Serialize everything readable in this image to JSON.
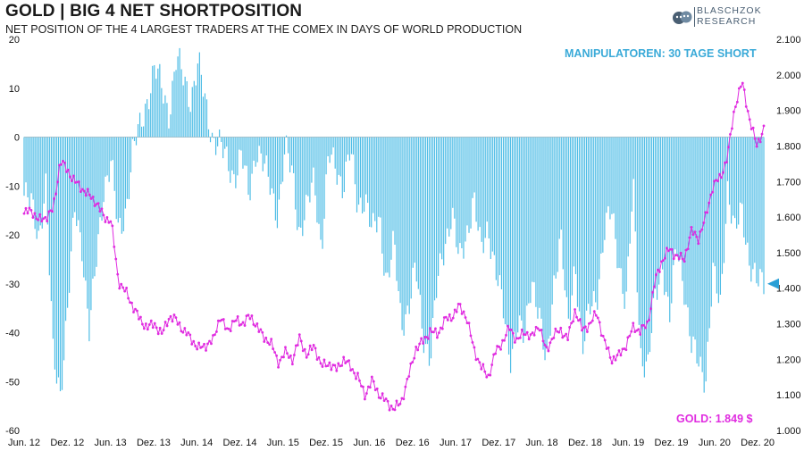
{
  "title": "GOLD | BIG 4 NET SHORTPOSITION",
  "subtitle": "NET POSITION OF THE 4 LARGEST TRADERS AT THE COMEX IN DAYS OF WORLD PRODUCTION",
  "logo": {
    "line1": "BLASCHZOK",
    "line2": "RESEARCH"
  },
  "colors": {
    "bars": "#4fbde6",
    "gold": "#e02ce0",
    "marker": "#2a9fd6"
  },
  "chart_data": {
    "type": "bar+line",
    "title": "GOLD | BIG 4 NET SHORTPOSITION",
    "annotations": {
      "manipulators": "MANIPULATOREN: 30 TAGE SHORT",
      "gold": "GOLD: 1.849 $"
    },
    "x_labels": [
      "Jun. 12",
      "Dez. 12",
      "Jun. 13",
      "Dez. 13",
      "Jun. 14",
      "Dez. 14",
      "Jun. 15",
      "Dez. 15",
      "Jun. 16",
      "Dez. 16",
      "Jun. 17",
      "Dez. 17",
      "Jun. 18",
      "Dez. 18",
      "Jun. 19",
      "Dez. 19",
      "Jun. 20",
      "Dez. 20"
    ],
    "y_left": {
      "min": -60,
      "max": 20,
      "ticks": [
        "20",
        "10",
        "0",
        "-10",
        "-20",
        "-30",
        "-40",
        "-50",
        "-60"
      ]
    },
    "y_right": {
      "min": 1000,
      "max": 2100,
      "ticks": [
        "2.100",
        "2.000",
        "1.900",
        "1.800",
        "1.700",
        "1.600",
        "1.500",
        "1.400",
        "1.300",
        "1.200",
        "1.100",
        "1.000"
      ]
    },
    "current_position": -30,
    "current_gold": 1849,
    "series": [
      {
        "name": "Big 4 net position (days of world production)",
        "axis": "left",
        "style": "bars",
        "t": [
          0,
          1,
          2,
          3,
          4,
          5,
          6,
          7,
          8,
          9,
          10,
          11,
          12,
          13,
          14,
          15,
          16,
          17,
          18,
          19,
          20,
          21,
          22,
          23,
          24,
          25,
          26,
          27,
          28,
          29,
          30,
          31,
          32,
          33,
          34,
          35,
          36,
          37,
          38,
          39,
          40,
          41,
          42,
          43,
          44,
          45,
          46,
          47,
          48,
          49,
          50,
          51,
          52,
          53,
          54,
          55,
          56,
          57,
          58,
          59,
          60,
          61,
          62,
          63,
          64,
          65,
          66,
          67,
          68,
          69,
          70,
          71,
          72,
          73,
          74,
          75,
          76,
          77,
          78,
          79,
          80,
          81,
          82,
          83,
          84,
          85,
          86,
          87,
          88,
          89,
          90,
          91,
          92,
          93,
          94,
          95,
          96,
          97,
          98,
          99,
          100,
          101,
          102
        ],
        "values": [
          -12,
          -14,
          -20,
          -10,
          -45,
          -52,
          -35,
          -15,
          -22,
          -40,
          -25,
          -10,
          -5,
          -20,
          -15,
          -3,
          2,
          8,
          14,
          10,
          5,
          16,
          12,
          8,
          15,
          7,
          0,
          -2,
          -5,
          -8,
          -4,
          -12,
          -2,
          -6,
          -10,
          -16,
          -3,
          -7,
          -20,
          -15,
          -8,
          -23,
          -4,
          -6,
          -10,
          -3,
          -14,
          -12,
          -20,
          -16,
          -30,
          -22,
          -38,
          -35,
          -27,
          -40,
          -45,
          -30,
          -22,
          -15,
          -26,
          -20,
          -12,
          -24,
          -18,
          -27,
          -35,
          -45,
          -38,
          -42,
          -28,
          -36,
          -48,
          -30,
          -20,
          -40,
          -25,
          -44,
          -35,
          -32,
          -20,
          -15,
          -25,
          -35,
          -10,
          -44,
          -48,
          -33,
          -25,
          -38,
          -22,
          -30,
          -43,
          -46,
          -49,
          -28,
          -35,
          -10,
          -20,
          -15,
          -25,
          -30,
          -30
        ]
      },
      {
        "name": "Gold price (USD)",
        "axis": "right",
        "style": "line+markers",
        "t": [
          0,
          1,
          2,
          3,
          4,
          5,
          6,
          7,
          8,
          9,
          10,
          11,
          12,
          13,
          14,
          15,
          16,
          17,
          18,
          19,
          20,
          21,
          22,
          23,
          24,
          25,
          26,
          27,
          28,
          29,
          30,
          31,
          32,
          33,
          34,
          35,
          36,
          37,
          38,
          39,
          40,
          41,
          42,
          43,
          44,
          45,
          46,
          47,
          48,
          49,
          50,
          51,
          52,
          53,
          54,
          55,
          56,
          57,
          58,
          59,
          60,
          61,
          62,
          63,
          64,
          65,
          66,
          67,
          68,
          69,
          70,
          71,
          72,
          73,
          74,
          75,
          76,
          77,
          78,
          79,
          80,
          81,
          82,
          83,
          84,
          85,
          86,
          87,
          88,
          89,
          90,
          91,
          92,
          93,
          94,
          95,
          96,
          97,
          98,
          99,
          100,
          101,
          102
        ],
        "values": [
          1610,
          1620,
          1590,
          1600,
          1620,
          1760,
          1730,
          1700,
          1680,
          1660,
          1640,
          1600,
          1590,
          1420,
          1390,
          1350,
          1310,
          1290,
          1300,
          1270,
          1320,
          1310,
          1280,
          1260,
          1230,
          1240,
          1250,
          1320,
          1280,
          1310,
          1300,
          1320,
          1300,
          1260,
          1250,
          1190,
          1220,
          1200,
          1260,
          1210,
          1240,
          1180,
          1190,
          1170,
          1200,
          1180,
          1150,
          1100,
          1140,
          1100,
          1080,
          1060,
          1080,
          1150,
          1230,
          1250,
          1280,
          1270,
          1310,
          1320,
          1350,
          1320,
          1230,
          1180,
          1150,
          1220,
          1250,
          1290,
          1250,
          1280,
          1260,
          1300,
          1220,
          1270,
          1280,
          1260,
          1340,
          1280,
          1300,
          1330,
          1250,
          1200,
          1210,
          1240,
          1290,
          1280,
          1300,
          1420,
          1480,
          1510,
          1490,
          1480,
          1560,
          1540,
          1600,
          1690,
          1710,
          1770,
          1910,
          1980,
          1880,
          1800,
          1849
        ]
      }
    ]
  }
}
